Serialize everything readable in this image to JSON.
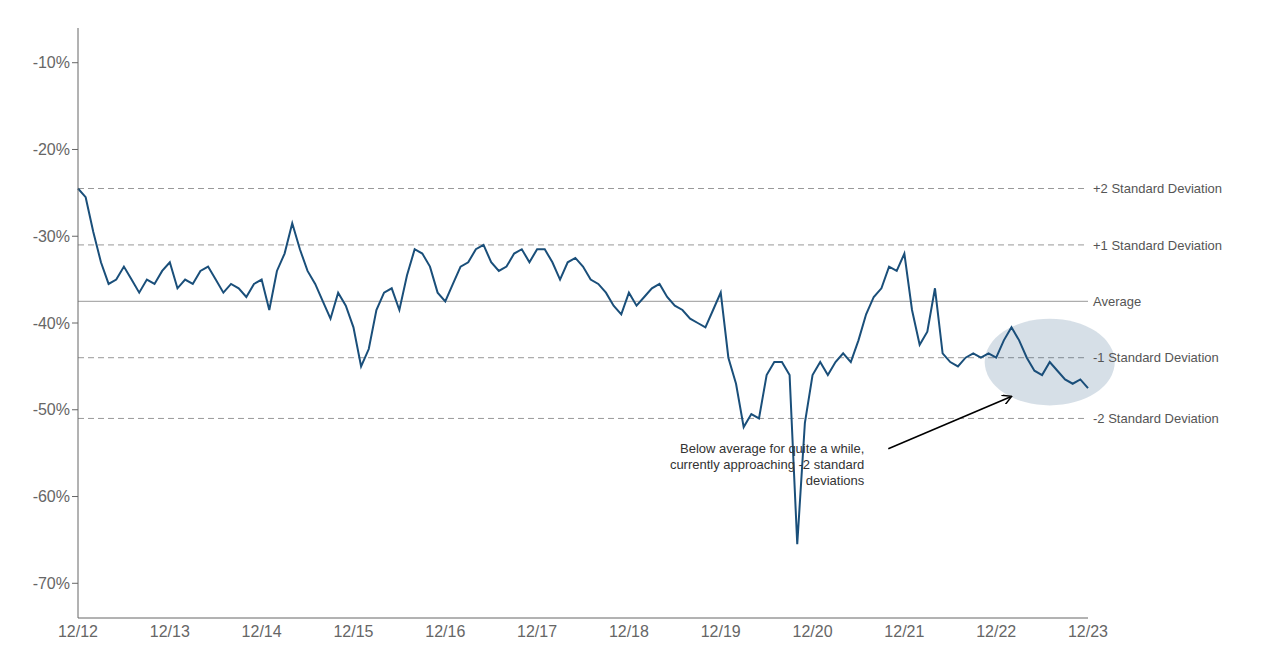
{
  "chart_data": {
    "type": "line",
    "categories": [
      "12/12",
      null,
      null,
      null,
      null,
      null,
      null,
      null,
      null,
      null,
      null,
      null,
      "12/13",
      null,
      null,
      null,
      null,
      null,
      null,
      null,
      null,
      null,
      null,
      null,
      "12/14",
      null,
      null,
      null,
      null,
      null,
      null,
      null,
      null,
      null,
      null,
      null,
      "12/15",
      null,
      null,
      null,
      null,
      null,
      null,
      null,
      null,
      null,
      null,
      null,
      "12/16",
      null,
      null,
      null,
      null,
      null,
      null,
      null,
      null,
      null,
      null,
      null,
      "12/17",
      null,
      null,
      null,
      null,
      null,
      null,
      null,
      null,
      null,
      null,
      null,
      "12/18",
      null,
      null,
      null,
      null,
      null,
      null,
      null,
      null,
      null,
      null,
      null,
      "12/19",
      null,
      null,
      null,
      null,
      null,
      null,
      null,
      null,
      null,
      null,
      null,
      "12/20",
      null,
      null,
      null,
      null,
      null,
      null,
      null,
      null,
      null,
      null,
      null,
      "12/21",
      null,
      null,
      null,
      null,
      null,
      null,
      null,
      null,
      null,
      null,
      null,
      "12/22",
      null,
      null,
      null,
      null,
      null,
      null,
      null,
      null,
      null,
      null,
      null,
      "12/23"
    ],
    "values": [
      -24.5,
      -25.5,
      -29.5,
      -33.0,
      -35.5,
      -35.0,
      -33.5,
      -35.0,
      -36.5,
      -35.0,
      -35.5,
      -34.0,
      -33.0,
      -36.0,
      -35.0,
      -35.5,
      -34.0,
      -33.5,
      -35.0,
      -36.5,
      -35.5,
      -36.0,
      -37.0,
      -35.5,
      -35.0,
      -38.5,
      -34.0,
      -32.0,
      -28.5,
      -31.5,
      -34.0,
      -35.5,
      -37.5,
      -39.5,
      -36.5,
      -38.0,
      -40.5,
      -45.0,
      -43.0,
      -38.5,
      -36.5,
      -36.0,
      -38.5,
      -34.5,
      -31.5,
      -32.0,
      -33.5,
      -36.5,
      -37.5,
      -35.5,
      -33.5,
      -33.0,
      -31.5,
      -31.0,
      -33.0,
      -34.0,
      -33.5,
      -32.0,
      -31.5,
      -33.0,
      -31.5,
      -31.5,
      -33.0,
      -35.0,
      -33.0,
      -32.5,
      -33.5,
      -35.0,
      -35.5,
      -36.5,
      -38.0,
      -39.0,
      -36.5,
      -38.0,
      -37.0,
      -36.0,
      -35.5,
      -37.0,
      -38.0,
      -38.5,
      -39.5,
      -40.0,
      -40.5,
      -38.5,
      -36.5,
      -44.0,
      -47.0,
      -52.0,
      -50.5,
      -51.0,
      -46.0,
      -44.5,
      -44.5,
      -46.0,
      -65.5,
      -51.5,
      -46.0,
      -44.5,
      -46.0,
      -44.5,
      -43.5,
      -44.5,
      -42.0,
      -39.0,
      -37.0,
      -36.0,
      -33.5,
      -34.0,
      -32.0,
      -38.5,
      -42.5,
      -41.0,
      -36.0,
      -43.5,
      -44.5,
      -45.0,
      -44.0,
      -43.5,
      -44.0,
      -43.5,
      -44.0,
      -42.0,
      -40.5,
      -42.0,
      -44.0,
      -45.5,
      -46.0,
      -44.5,
      -45.5,
      -46.5,
      -47.0,
      -46.5,
      -47.5
    ],
    "color": "#1A4F7A",
    "ylim": [
      -74,
      -6
    ],
    "yticks": [
      {
        "value": -10,
        "label": "-10%"
      },
      {
        "value": -20,
        "label": "-20%"
      },
      {
        "value": -30,
        "label": "-30%"
      },
      {
        "value": -40,
        "label": "-40%"
      },
      {
        "value": -50,
        "label": "-50%"
      },
      {
        "value": -60,
        "label": "-60%"
      },
      {
        "value": -70,
        "label": "-70%"
      }
    ],
    "grid": false,
    "reference_lines": [
      {
        "value": -24.5,
        "label": "+2 Standard Deviation",
        "line_style": "dashed"
      },
      {
        "value": -31.0,
        "label": "+1 Standard Deviation",
        "line_style": "dashed"
      },
      {
        "value": -37.5,
        "label": "Average",
        "line_style": "solid"
      },
      {
        "value": -44.0,
        "label": "-1 Standard Deviation",
        "line_style": "dashed"
      },
      {
        "value": -51.0,
        "label": "-2 Standard Deviation",
        "line_style": "dashed"
      }
    ],
    "annotations": [
      "Below average for quite a while,\ncurrently approaching -2 standard\ndeviations"
    ]
  }
}
